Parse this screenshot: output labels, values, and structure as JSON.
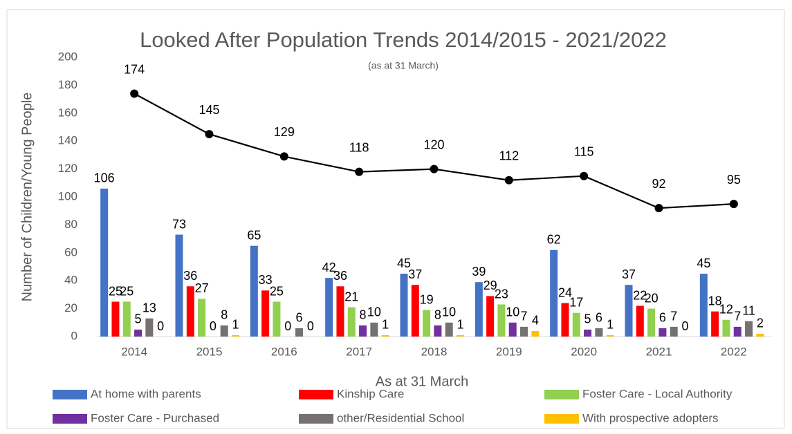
{
  "chart_data": {
    "type": "bar",
    "title": "Looked After Population Trends 2014/2015 - 2021/2022",
    "subtitle": "(as at 31 March)",
    "x_label": "As at 31 March",
    "y_label": "Number of Children/Young People",
    "categories": [
      "2014",
      "2015",
      "2016",
      "2017",
      "2018",
      "2019",
      "2020",
      "2021",
      "2022"
    ],
    "series": [
      {
        "name": "At home with parents",
        "color": "#4472c4",
        "values": [
          106,
          73,
          65,
          42,
          45,
          39,
          62,
          37,
          45
        ]
      },
      {
        "name": "Kinship Care",
        "color": "#ff0000",
        "values": [
          25,
          36,
          33,
          36,
          37,
          29,
          24,
          22,
          18
        ]
      },
      {
        "name": "Foster Care - Local Authority",
        "color": "#92d050",
        "values": [
          25,
          27,
          25,
          21,
          19,
          23,
          17,
          20,
          12
        ]
      },
      {
        "name": "Foster Care - Purchased",
        "color": "#7030a0",
        "values": [
          5,
          0,
          0,
          8,
          8,
          10,
          5,
          6,
          7
        ]
      },
      {
        "name": "other/Residential School",
        "color": "#767171",
        "values": [
          13,
          8,
          6,
          10,
          10,
          7,
          6,
          7,
          11
        ]
      },
      {
        "name": "With prospective adopters",
        "color": "#ffc000",
        "values": [
          0,
          1,
          0,
          1,
          1,
          4,
          1,
          0,
          2
        ]
      }
    ],
    "line": {
      "type": "line",
      "color": "#000000",
      "values": [
        174,
        145,
        129,
        118,
        120,
        112,
        115,
        92,
        95
      ]
    },
    "ylim": [
      0,
      200
    ],
    "yticks": [
      0,
      20,
      40,
      60,
      80,
      100,
      120,
      140,
      160,
      180,
      200
    ],
    "grid": false,
    "legend": "bottom"
  }
}
